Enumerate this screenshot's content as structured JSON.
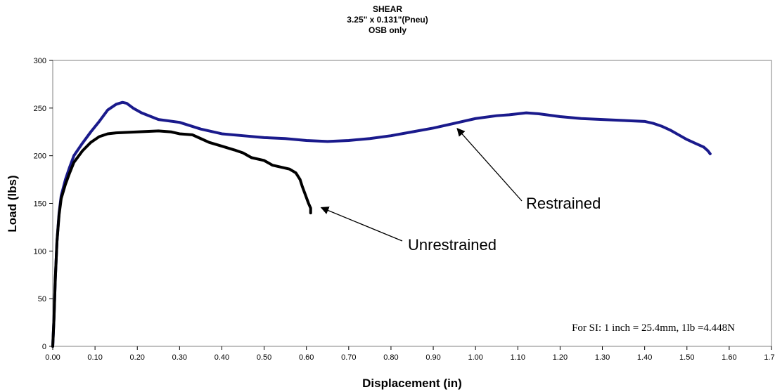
{
  "chart_data": {
    "type": "line",
    "title": "SHEAR",
    "subtitle_lines": [
      "3.25\" x 0.131\"(Pneu)",
      "OSB only"
    ],
    "xlabel": "Displacement (in)",
    "ylabel": "Load (lbs)",
    "xlim": [
      0,
      1.7
    ],
    "ylim": [
      0,
      300
    ],
    "x_ticks": [
      "0.00",
      "0.10",
      "0.20",
      "0.30",
      "0.40",
      "0.50",
      "0.60",
      "0.70",
      "0.80",
      "0.90",
      "1.00",
      "1.10",
      "1.20",
      "1.30",
      "1.40",
      "1.50",
      "1.60",
      "1.70"
    ],
    "y_ticks": [
      "0",
      "50",
      "100",
      "150",
      "200",
      "250",
      "300"
    ],
    "grid": false,
    "legend": "none",
    "colors": {
      "restrained": "#1a1a8c",
      "unrestrained": "#000000"
    },
    "series": [
      {
        "name": "Restrained",
        "x": [
          0.0,
          0.003,
          0.006,
          0.01,
          0.015,
          0.02,
          0.03,
          0.04,
          0.05,
          0.07,
          0.09,
          0.11,
          0.13,
          0.15,
          0.165,
          0.175,
          0.19,
          0.21,
          0.25,
          0.3,
          0.35,
          0.4,
          0.45,
          0.5,
          0.55,
          0.6,
          0.65,
          0.7,
          0.75,
          0.8,
          0.85,
          0.9,
          0.95,
          1.0,
          1.05,
          1.08,
          1.1,
          1.12,
          1.15,
          1.2,
          1.25,
          1.3,
          1.35,
          1.4,
          1.42,
          1.44,
          1.46,
          1.48,
          1.5,
          1.52,
          1.54,
          1.55,
          1.555
        ],
        "y": [
          0,
          30,
          70,
          110,
          140,
          158,
          175,
          188,
          200,
          213,
          225,
          236,
          248,
          254,
          256,
          255,
          250,
          245,
          238,
          235,
          228,
          223,
          221,
          219,
          218,
          216,
          215,
          216,
          218,
          221,
          225,
          229,
          234,
          239,
          242,
          243,
          244,
          245,
          244,
          241,
          239,
          238,
          237,
          236,
          234,
          231,
          227,
          222,
          217,
          213,
          209,
          205,
          202
        ]
      },
      {
        "name": "Unrestrained",
        "x": [
          0.0,
          0.003,
          0.006,
          0.01,
          0.015,
          0.02,
          0.03,
          0.04,
          0.05,
          0.07,
          0.09,
          0.11,
          0.13,
          0.15,
          0.2,
          0.25,
          0.28,
          0.3,
          0.33,
          0.35,
          0.37,
          0.4,
          0.43,
          0.45,
          0.47,
          0.5,
          0.52,
          0.54,
          0.56,
          0.575,
          0.585,
          0.59,
          0.595,
          0.6,
          0.605,
          0.61,
          0.61
        ],
        "y": [
          0,
          30,
          70,
          110,
          138,
          155,
          170,
          182,
          193,
          205,
          214,
          220,
          223,
          224,
          225,
          226,
          225,
          223,
          222,
          218,
          214,
          210,
          206,
          203,
          198,
          195,
          190,
          188,
          186,
          182,
          175,
          168,
          162,
          156,
          150,
          145,
          140
        ]
      }
    ],
    "annotations": [
      {
        "text": "Restrained",
        "target_x": 0.95,
        "target_y": 233
      },
      {
        "text": "Unrestrained",
        "target_x": 0.625,
        "target_y": 150
      }
    ],
    "note": "For SI: 1 inch = 25.4mm, 1lb =4.448N"
  }
}
